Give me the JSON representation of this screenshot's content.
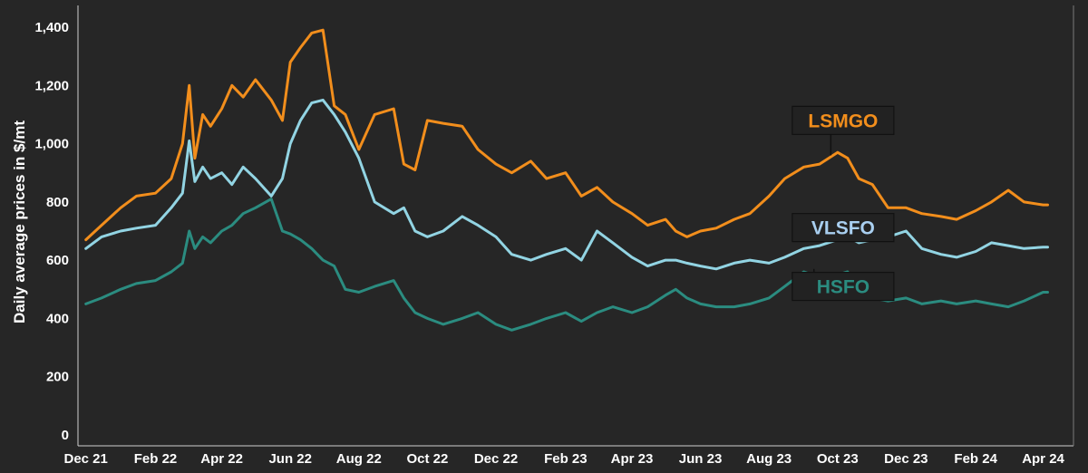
{
  "chart_data": {
    "type": "line",
    "title": "",
    "xlabel": "",
    "ylabel": "Daily average prices in $/mt",
    "ylim": [
      0,
      1400
    ],
    "xlim": [
      "2021-11-24",
      "2024-04-28"
    ],
    "yticks": [
      0,
      200,
      400,
      600,
      800,
      1000,
      1200,
      1400
    ],
    "ytick_labels": [
      "0",
      "200",
      "400",
      "600",
      "800",
      "1,000",
      "1,200",
      "1,400"
    ],
    "xticks": [
      {
        "date": "2021-12-01",
        "label": "Dec 21"
      },
      {
        "date": "2022-02-01",
        "label": "Feb 22"
      },
      {
        "date": "2022-04-01",
        "label": "Apr 22"
      },
      {
        "date": "2022-06-01",
        "label": "Jun 22"
      },
      {
        "date": "2022-08-01",
        "label": "Aug 22"
      },
      {
        "date": "2022-10-01",
        "label": "Oct 22"
      },
      {
        "date": "2022-12-01",
        "label": "Dec 22"
      },
      {
        "date": "2023-02-01",
        "label": "Feb 23"
      },
      {
        "date": "2023-04-01",
        "label": "Apr 23"
      },
      {
        "date": "2023-06-01",
        "label": "Jun 23"
      },
      {
        "date": "2023-08-01",
        "label": "Aug 23"
      },
      {
        "date": "2023-10-01",
        "label": "Oct 23"
      },
      {
        "date": "2023-12-01",
        "label": "Dec 23"
      },
      {
        "date": "2024-02-01",
        "label": "Feb 24"
      },
      {
        "date": "2024-04-01",
        "label": "Apr 24"
      }
    ],
    "grid": false,
    "legend": "inline annotations",
    "series": [
      {
        "name": "LSMGO",
        "color": "#f28e1c",
        "x": [
          "2021-12-01",
          "2021-12-15",
          "2022-01-01",
          "2022-01-15",
          "2022-02-01",
          "2022-02-15",
          "2022-02-25",
          "2022-03-03",
          "2022-03-08",
          "2022-03-15",
          "2022-03-22",
          "2022-04-01",
          "2022-04-10",
          "2022-04-20",
          "2022-05-01",
          "2022-05-15",
          "2022-05-25",
          "2022-06-01",
          "2022-06-10",
          "2022-06-20",
          "2022-06-30",
          "2022-07-10",
          "2022-07-20",
          "2022-08-01",
          "2022-08-15",
          "2022-09-01",
          "2022-09-10",
          "2022-09-20",
          "2022-10-01",
          "2022-10-15",
          "2022-11-01",
          "2022-11-15",
          "2022-12-01",
          "2022-12-15",
          "2023-01-01",
          "2023-01-15",
          "2023-02-01",
          "2023-02-15",
          "2023-03-01",
          "2023-03-15",
          "2023-04-01",
          "2023-04-15",
          "2023-05-01",
          "2023-05-10",
          "2023-05-20",
          "2023-06-01",
          "2023-06-15",
          "2023-07-01",
          "2023-07-15",
          "2023-08-01",
          "2023-08-15",
          "2023-09-01",
          "2023-09-15",
          "2023-10-01",
          "2023-10-10",
          "2023-10-20",
          "2023-11-01",
          "2023-11-15",
          "2023-12-01",
          "2023-12-15",
          "2024-01-01",
          "2024-01-15",
          "2024-02-01",
          "2024-02-15",
          "2024-03-01",
          "2024-03-15",
          "2024-04-01",
          "2024-04-05"
        ],
        "values": [
          670,
          720,
          780,
          820,
          830,
          880,
          1000,
          1200,
          950,
          1100,
          1060,
          1120,
          1200,
          1160,
          1220,
          1150,
          1080,
          1280,
          1330,
          1380,
          1390,
          1130,
          1100,
          980,
          1100,
          1120,
          930,
          910,
          1080,
          1070,
          1060,
          980,
          930,
          900,
          940,
          880,
          900,
          820,
          850,
          800,
          760,
          720,
          740,
          700,
          680,
          700,
          710,
          740,
          760,
          820,
          880,
          920,
          930,
          970,
          950,
          880,
          860,
          780,
          780,
          760,
          750,
          740,
          770,
          800,
          840,
          800,
          790,
          790
        ]
      },
      {
        "name": "VLSFO",
        "color": "#92d4e3",
        "x": [
          "2021-12-01",
          "2021-12-15",
          "2022-01-01",
          "2022-01-15",
          "2022-02-01",
          "2022-02-15",
          "2022-02-25",
          "2022-03-03",
          "2022-03-08",
          "2022-03-15",
          "2022-03-22",
          "2022-04-01",
          "2022-04-10",
          "2022-04-20",
          "2022-05-01",
          "2022-05-15",
          "2022-05-25",
          "2022-06-01",
          "2022-06-10",
          "2022-06-20",
          "2022-06-30",
          "2022-07-10",
          "2022-07-20",
          "2022-08-01",
          "2022-08-15",
          "2022-09-01",
          "2022-09-10",
          "2022-09-20",
          "2022-10-01",
          "2022-10-15",
          "2022-11-01",
          "2022-11-15",
          "2022-12-01",
          "2022-12-15",
          "2023-01-01",
          "2023-01-15",
          "2023-02-01",
          "2023-02-15",
          "2023-03-01",
          "2023-03-15",
          "2023-04-01",
          "2023-04-15",
          "2023-05-01",
          "2023-05-10",
          "2023-05-20",
          "2023-06-01",
          "2023-06-15",
          "2023-07-01",
          "2023-07-15",
          "2023-08-01",
          "2023-08-15",
          "2023-09-01",
          "2023-09-15",
          "2023-10-01",
          "2023-10-10",
          "2023-10-20",
          "2023-11-01",
          "2023-11-15",
          "2023-12-01",
          "2023-12-15",
          "2024-01-01",
          "2024-01-15",
          "2024-02-01",
          "2024-02-15",
          "2024-03-01",
          "2024-03-15",
          "2024-04-01",
          "2024-04-05"
        ],
        "values": [
          640,
          680,
          700,
          710,
          720,
          780,
          830,
          1010,
          870,
          920,
          880,
          900,
          860,
          920,
          880,
          820,
          880,
          1000,
          1080,
          1140,
          1150,
          1100,
          1040,
          950,
          800,
          760,
          780,
          700,
          680,
          700,
          750,
          720,
          680,
          620,
          600,
          620,
          640,
          600,
          700,
          660,
          610,
          580,
          600,
          600,
          590,
          580,
          570,
          590,
          600,
          590,
          610,
          640,
          650,
          670,
          680,
          660,
          670,
          680,
          700,
          640,
          620,
          610,
          630,
          660,
          650,
          640,
          645,
          645
        ]
      },
      {
        "name": "HSFO",
        "color": "#2b8c80",
        "x": [
          "2021-12-01",
          "2021-12-15",
          "2022-01-01",
          "2022-01-15",
          "2022-02-01",
          "2022-02-15",
          "2022-02-25",
          "2022-03-03",
          "2022-03-08",
          "2022-03-15",
          "2022-03-22",
          "2022-04-01",
          "2022-04-10",
          "2022-04-20",
          "2022-05-01",
          "2022-05-15",
          "2022-05-25",
          "2022-06-01",
          "2022-06-10",
          "2022-06-20",
          "2022-06-30",
          "2022-07-10",
          "2022-07-20",
          "2022-08-01",
          "2022-08-15",
          "2022-09-01",
          "2022-09-10",
          "2022-09-20",
          "2022-10-01",
          "2022-10-15",
          "2022-11-01",
          "2022-11-15",
          "2022-12-01",
          "2022-12-15",
          "2023-01-01",
          "2023-01-15",
          "2023-02-01",
          "2023-02-15",
          "2023-03-01",
          "2023-03-15",
          "2023-04-01",
          "2023-04-15",
          "2023-05-01",
          "2023-05-10",
          "2023-05-20",
          "2023-06-01",
          "2023-06-15",
          "2023-07-01",
          "2023-07-15",
          "2023-08-01",
          "2023-08-15",
          "2023-09-01",
          "2023-09-15",
          "2023-10-01",
          "2023-10-10",
          "2023-10-20",
          "2023-11-01",
          "2023-11-15",
          "2023-12-01",
          "2023-12-15",
          "2024-01-01",
          "2024-01-15",
          "2024-02-01",
          "2024-02-15",
          "2024-03-01",
          "2024-03-15",
          "2024-04-01",
          "2024-04-05"
        ],
        "values": [
          450,
          470,
          500,
          520,
          530,
          560,
          590,
          700,
          640,
          680,
          660,
          700,
          720,
          760,
          780,
          810,
          700,
          690,
          670,
          640,
          600,
          580,
          500,
          490,
          510,
          530,
          470,
          420,
          400,
          380,
          400,
          420,
          380,
          360,
          380,
          400,
          420,
          390,
          420,
          440,
          420,
          440,
          480,
          500,
          470,
          450,
          440,
          440,
          450,
          470,
          510,
          560,
          540,
          550,
          560,
          480,
          470,
          460,
          470,
          450,
          460,
          450,
          460,
          450,
          440,
          460,
          490,
          490
        ]
      }
    ],
    "annotations": [
      {
        "text": "LSMGO",
        "color": "#f28e1c",
        "x": "2023-08-25",
        "y": 1080,
        "point": {
          "x": "2023-09-25",
          "y": 960
        }
      },
      {
        "text": "VLSFO",
        "color": "#a9cff0",
        "x": "2023-08-25",
        "y": 712,
        "point": {
          "x": "2023-10-01",
          "y": 680
        }
      },
      {
        "text": "HSFO",
        "color": "#2b8c80",
        "x": "2023-08-25",
        "y": 510,
        "point": {
          "x": "2023-09-10",
          "y": 570
        }
      }
    ]
  }
}
